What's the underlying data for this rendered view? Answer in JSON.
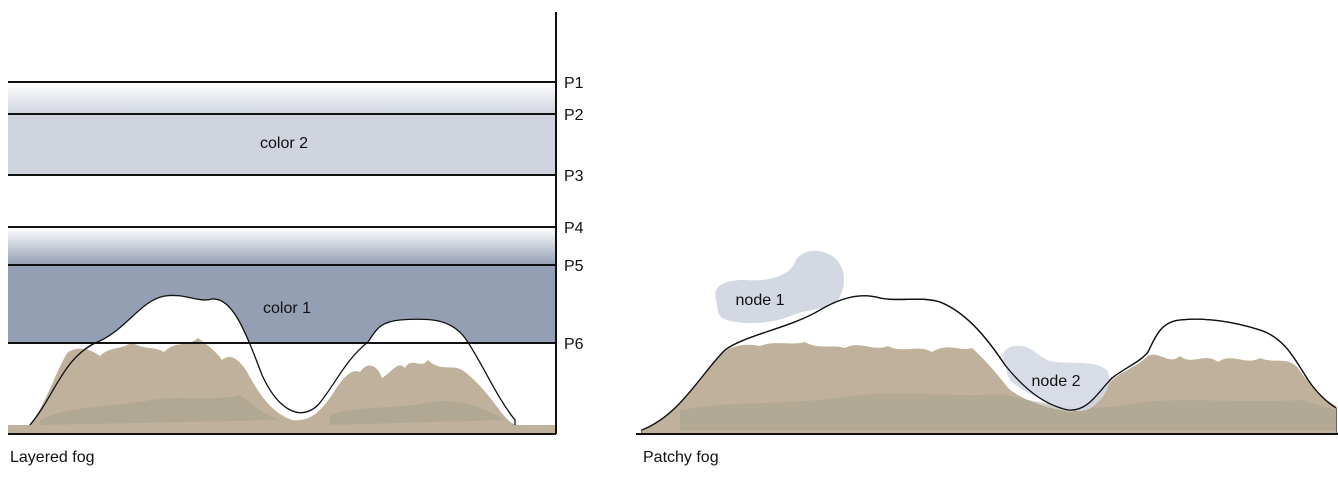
{
  "colors": {
    "color2": "#cfd4de",
    "color1": "#949fb3",
    "terrain": "#bfb19b",
    "terrainShadow": "#a8a290",
    "snow": "#ffffff",
    "patch": "#d3d8e3",
    "line": "#111111"
  },
  "layered": {
    "caption": "Layered fog",
    "planes": [
      {
        "label": "P1"
      },
      {
        "label": "P2"
      },
      {
        "label": "P3"
      },
      {
        "label": "P4"
      },
      {
        "label": "P5"
      },
      {
        "label": "P6"
      }
    ],
    "band_labels": {
      "color2": "color 2",
      "color1": "color 1"
    }
  },
  "patchy": {
    "caption": "Patchy fog",
    "nodes": [
      {
        "label": "node 1"
      },
      {
        "label": "node 2"
      }
    ]
  }
}
